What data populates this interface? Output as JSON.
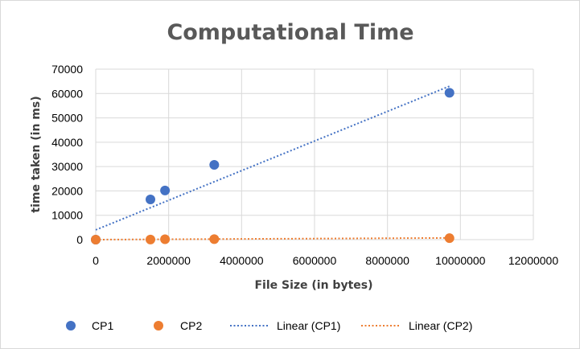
{
  "chart_data": {
    "type": "scatter",
    "title": "Computational Time",
    "xlabel": "File Size (in bytes)",
    "ylabel": "time taken (in ms)",
    "xlim": [
      0,
      12000000
    ],
    "ylim": [
      0,
      70000
    ],
    "x_ticks": [
      0,
      2000000,
      4000000,
      6000000,
      8000000,
      10000000,
      12000000
    ],
    "x_tick_labels": [
      "0",
      "2000000",
      "4000000",
      "6000000",
      "8000000",
      "10000000",
      "12000000"
    ],
    "y_ticks": [
      0,
      10000,
      20000,
      30000,
      40000,
      50000,
      60000,
      70000
    ],
    "y_tick_labels": [
      "0",
      "10000",
      "20000",
      "30000",
      "40000",
      "50000",
      "60000",
      "70000"
    ],
    "grid": true,
    "legend_position": "bottom",
    "series": [
      {
        "name": "CP1",
        "color": "#4472c4",
        "points": [
          {
            "x": 0,
            "y": 0
          },
          {
            "x": 1500000,
            "y": 16500
          },
          {
            "x": 1900000,
            "y": 20200
          },
          {
            "x": 3250000,
            "y": 30700
          },
          {
            "x": 9700000,
            "y": 60300
          }
        ]
      },
      {
        "name": "CP2",
        "color": "#ed7d31",
        "points": [
          {
            "x": 0,
            "y": 0
          },
          {
            "x": 1500000,
            "y": 30
          },
          {
            "x": 1900000,
            "y": 180
          },
          {
            "x": 3250000,
            "y": 200
          },
          {
            "x": 9700000,
            "y": 600
          }
        ]
      }
    ],
    "trendlines": [
      {
        "name": "Linear (CP1)",
        "color": "#4472c4",
        "x_start": 0,
        "y_start": 4000,
        "x_end": 9700000,
        "y_end": 63000
      },
      {
        "name": "Linear (CP2)",
        "color": "#ed7d31",
        "x_start": 0,
        "y_start": 0,
        "x_end": 9700000,
        "y_end": 700
      }
    ],
    "legend": [
      "CP1",
      "CP2",
      "Linear (CP1)",
      "Linear (CP2)"
    ]
  }
}
